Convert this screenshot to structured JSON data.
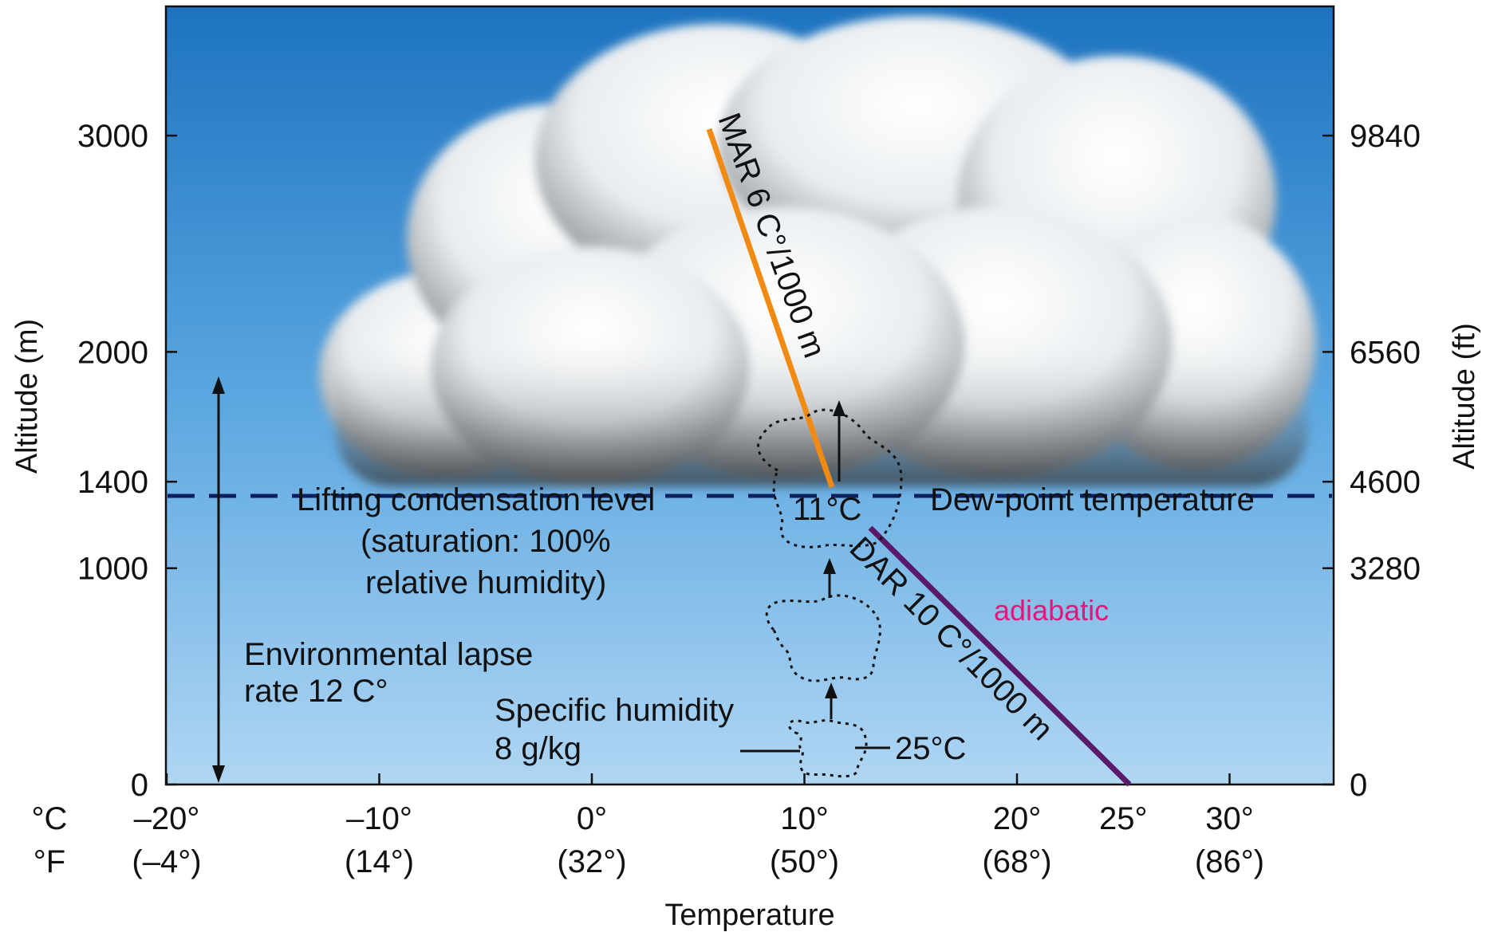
{
  "diagram": {
    "x_axis": {
      "title": "Temperature",
      "unit_c": "°C",
      "unit_f": "°F",
      "ticks": [
        {
          "c": "–20°",
          "f": "(–4°)",
          "value": -20
        },
        {
          "c": "–10°",
          "f": "(14°)",
          "value": -10
        },
        {
          "c": "0°",
          "f": "(32°)",
          "value": 0
        },
        {
          "c": "10°",
          "f": "(50°)",
          "value": 10
        },
        {
          "c": "20°",
          "f": "(68°)",
          "value": 20
        },
        {
          "c": "25°",
          "f": "",
          "value": 25
        },
        {
          "c": "30°",
          "f": "(86°)",
          "value": 30
        }
      ]
    },
    "left_axis": {
      "title": "Altitude (m)",
      "ticks": [
        {
          "label": "0",
          "value": 0
        },
        {
          "label": "1000",
          "value": 1000
        },
        {
          "label": "1400",
          "value": 1400
        },
        {
          "label": "2000",
          "value": 2000
        },
        {
          "label": "3000",
          "value": 3000
        }
      ]
    },
    "right_axis": {
      "title": "Altitude (ft)",
      "ticks": [
        {
          "label": "0",
          "value": 0
        },
        {
          "label": "3280",
          "value": 1000
        },
        {
          "label": "4600",
          "value": 1400
        },
        {
          "label": "6560",
          "value": 2000
        },
        {
          "label": "9840",
          "value": 3000
        }
      ]
    },
    "labels": {
      "mar": "MAR 6 C°/1000 m",
      "dar": "DAR 10 C°/1000 m",
      "lcl_line1": "Lifting condensation level",
      "lcl_line2": "(saturation: 100%",
      "lcl_line3": "relative humidity)",
      "dew_point": "Dew-point temperature",
      "temp_11": "11°C",
      "temp_25": "25°C",
      "env_line1": "Environmental lapse",
      "env_line2": "rate 12 C°",
      "sh_line1": "Specific humidity",
      "sh_line2": "8 g/kg",
      "adiabatic": "adiabatic"
    },
    "colors": {
      "sky_top": "#1f78c4",
      "sky_bottom": "#a9d2f2",
      "mar_line": "#f08a12",
      "dar_line": "#5a1a6a",
      "lcl_dash": "#0d1f5c",
      "adiabatic_text": "#e0187a"
    }
  }
}
